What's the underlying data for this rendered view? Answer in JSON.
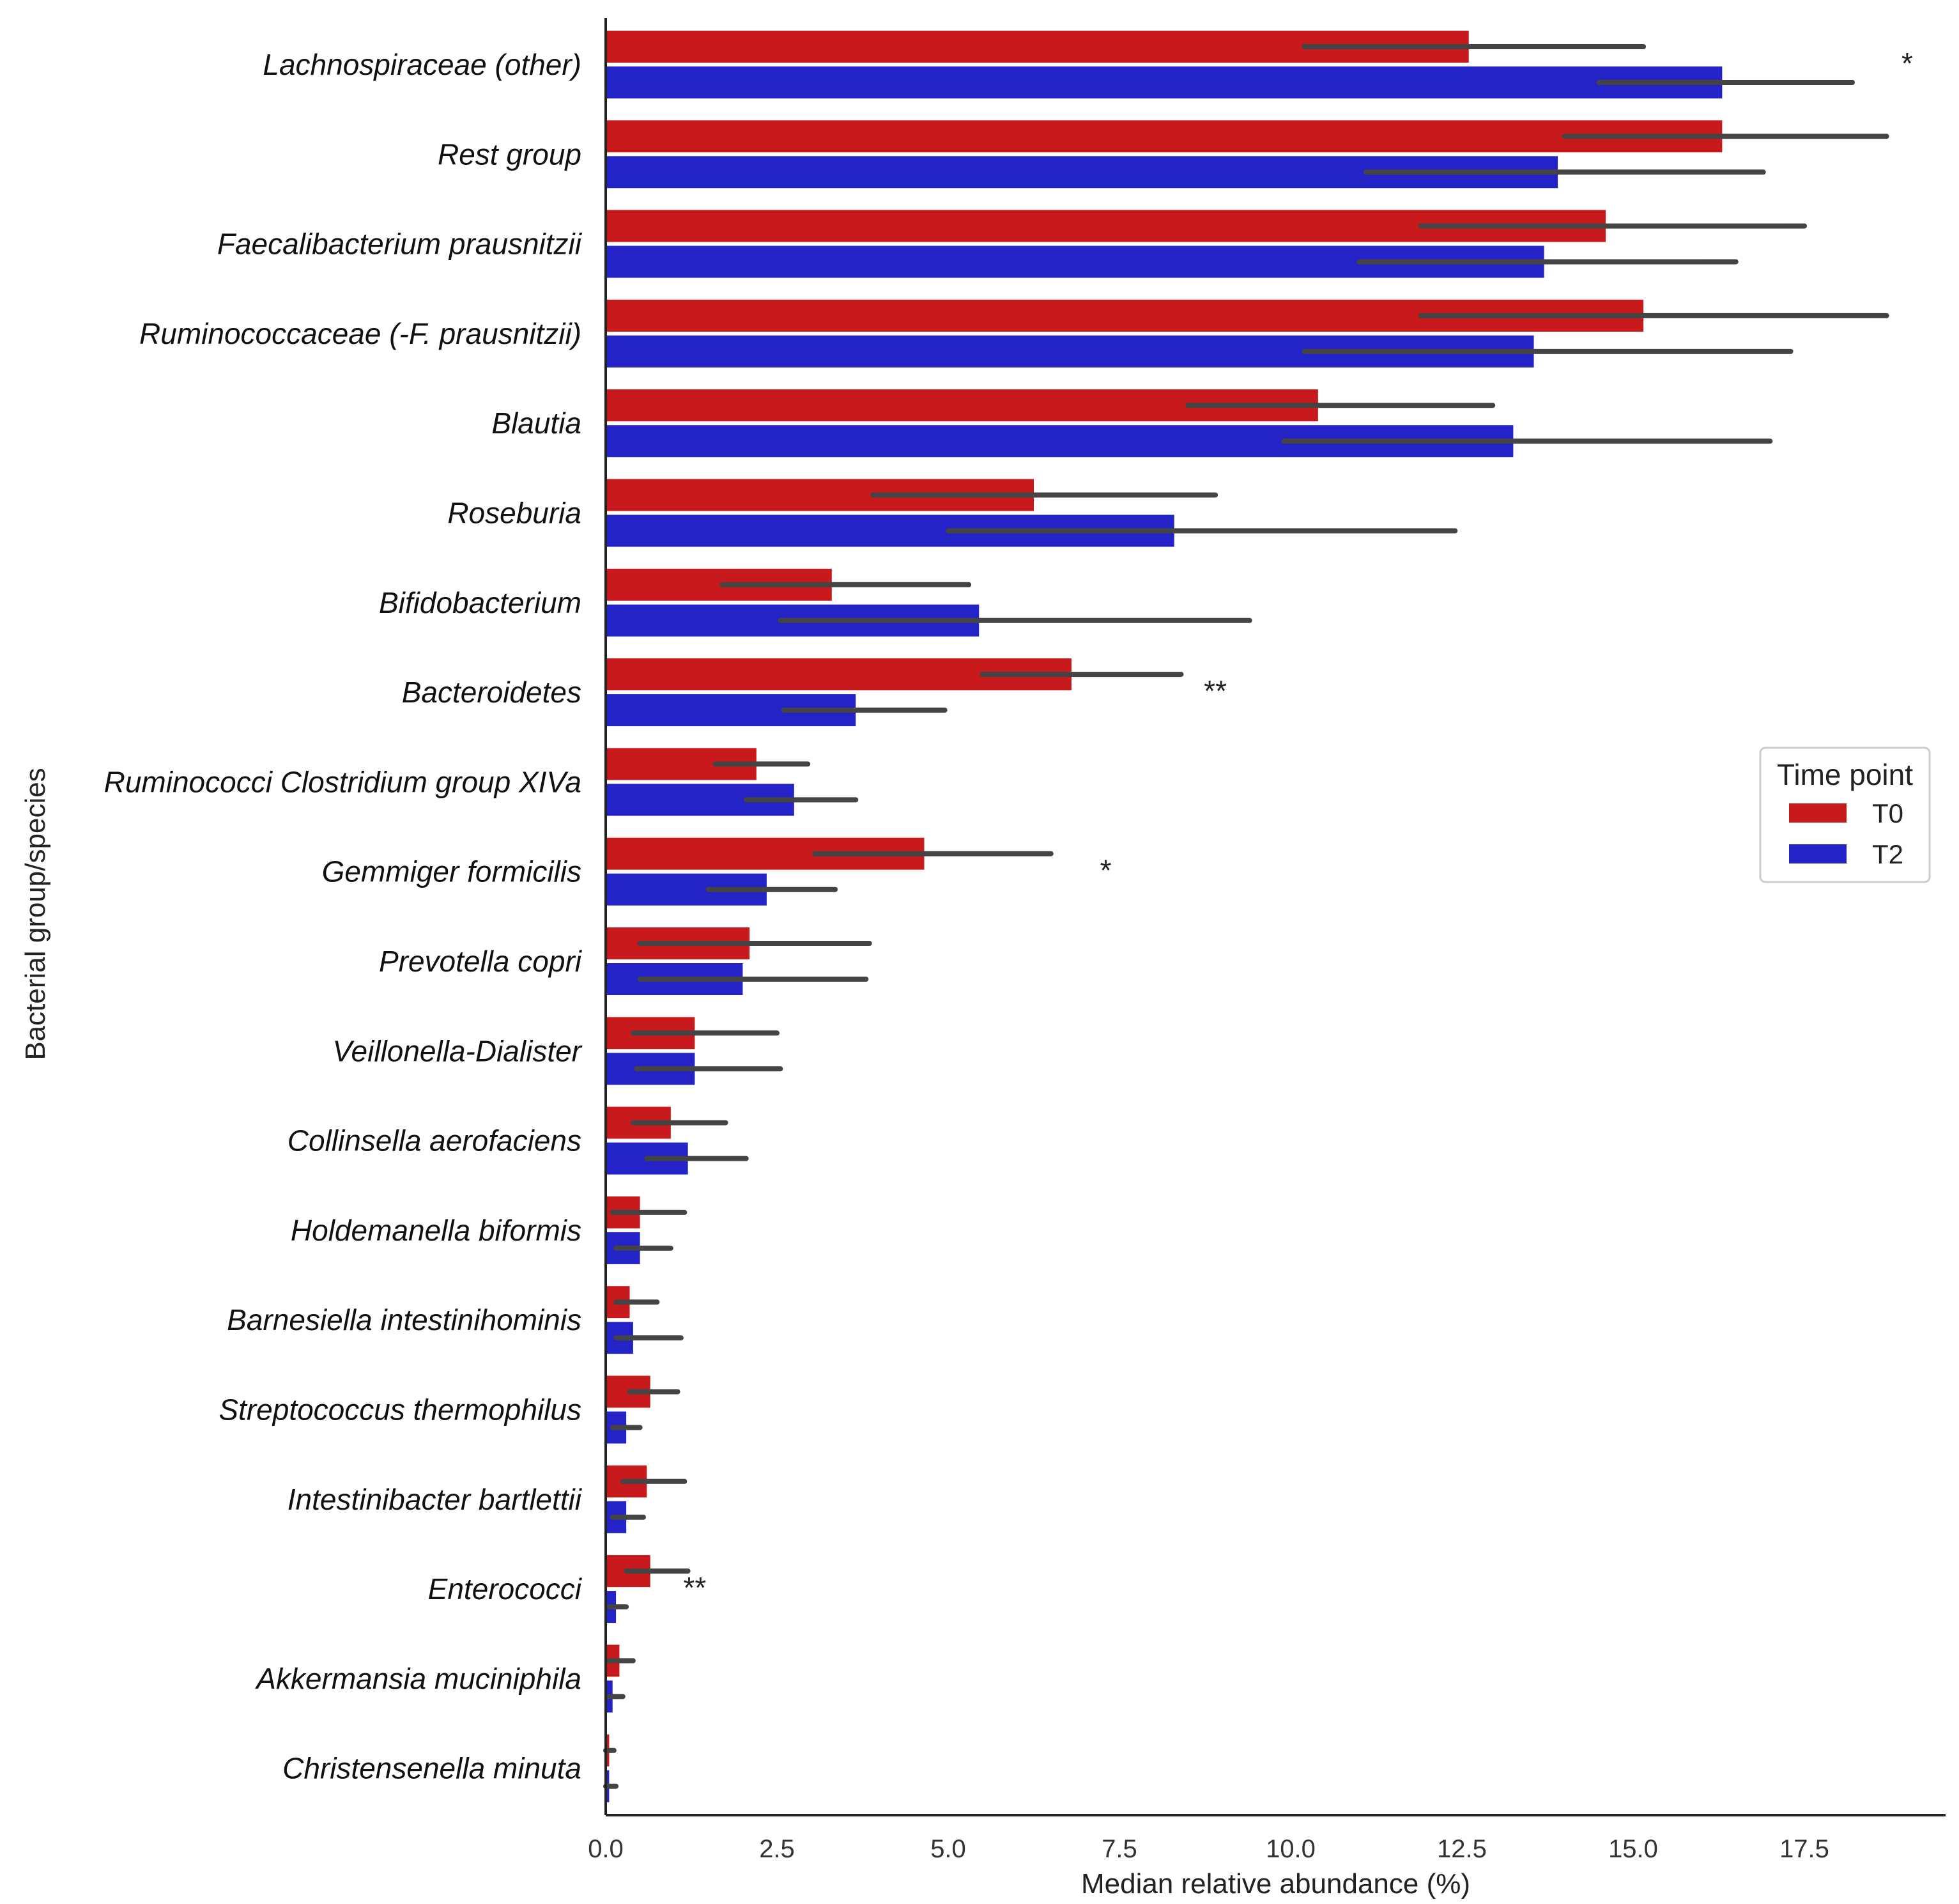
{
  "chart_data": {
    "type": "bar",
    "orientation": "horizontal",
    "xlabel": "Median relative abundance (%)",
    "ylabel": "Bacterial group/species",
    "xlim": [
      0,
      19.5
    ],
    "xticks": [
      "0.0",
      "2.5",
      "5.0",
      "7.5",
      "10.0",
      "12.5",
      "15.0",
      "17.5"
    ],
    "grid": false,
    "legend": {
      "title": "Time point",
      "position": "right"
    },
    "colors": {
      "T0": "#c8191d",
      "T2": "#2323c8",
      "errorbar": "#444444"
    },
    "categories": [
      "Lachnospiraceae (other)",
      "Rest group",
      "Faecalibacterium prausnitzii",
      "Ruminococcaceae (-F. prausnitzii)",
      "Blautia",
      "Roseburia",
      "Bifidobacterium",
      "Bacteroidetes",
      "Ruminococci Clostridium group XIVa",
      "Gemmiger formicilis",
      "Prevotella copri",
      "Veillonella-Dialister",
      "Collinsella aerofaciens",
      "Holdemanella biformis",
      "Barnesiella intestinihominis",
      "Streptococcus thermophilus",
      "Intestinibacter bartlettii",
      "Enterococci",
      "Akkermansia muciniphila",
      "Christensenella minuta"
    ],
    "series": [
      {
        "name": "T0",
        "values": [
          12.6,
          16.3,
          14.6,
          15.15,
          10.4,
          6.25,
          3.3,
          6.8,
          2.2,
          4.65,
          2.1,
          1.3,
          0.95,
          0.5,
          0.35,
          0.65,
          0.6,
          0.65,
          0.2,
          0.05
        ],
        "ci": [
          [
            10.2,
            15.15
          ],
          [
            14.0,
            18.7
          ],
          [
            11.9,
            17.5
          ],
          [
            11.9,
            18.7
          ],
          [
            8.5,
            12.95
          ],
          [
            3.9,
            8.9
          ],
          [
            1.7,
            5.3
          ],
          [
            5.5,
            8.4
          ],
          [
            1.6,
            2.95
          ],
          [
            3.05,
            6.5
          ],
          [
            0.5,
            3.85
          ],
          [
            0.4,
            2.5
          ],
          [
            0.4,
            1.75
          ],
          [
            0.1,
            1.15
          ],
          [
            0.15,
            0.75
          ],
          [
            0.35,
            1.05
          ],
          [
            0.25,
            1.15
          ],
          [
            0.3,
            1.2
          ],
          [
            0.05,
            0.4
          ],
          [
            0.0,
            0.12
          ]
        ]
      },
      {
        "name": "T2",
        "values": [
          16.3,
          13.9,
          13.7,
          13.55,
          13.25,
          8.3,
          5.45,
          3.65,
          2.75,
          2.35,
          2.0,
          1.3,
          1.2,
          0.5,
          0.4,
          0.3,
          0.3,
          0.15,
          0.1,
          0.05
        ],
        "ci": [
          [
            14.5,
            18.2
          ],
          [
            11.1,
            16.9
          ],
          [
            11.0,
            16.5
          ],
          [
            10.2,
            17.3
          ],
          [
            9.9,
            17.0
          ],
          [
            5.0,
            12.4
          ],
          [
            2.55,
            9.4
          ],
          [
            2.6,
            4.95
          ],
          [
            2.05,
            3.65
          ],
          [
            1.5,
            3.35
          ],
          [
            0.5,
            3.8
          ],
          [
            0.45,
            2.55
          ],
          [
            0.6,
            2.05
          ],
          [
            0.15,
            0.95
          ],
          [
            0.15,
            1.1
          ],
          [
            0.1,
            0.5
          ],
          [
            0.1,
            0.55
          ],
          [
            0.05,
            0.3
          ],
          [
            0.05,
            0.25
          ],
          [
            0.0,
            0.15
          ]
        ]
      }
    ],
    "significance": [
      {
        "category": "Lachnospiraceae (other)",
        "label": "*",
        "x": 19.0
      },
      {
        "category": "Bacteroidetes",
        "label": "**",
        "x": 8.9
      },
      {
        "category": "Gemmiger formicilis",
        "label": "*",
        "x": 7.3
      },
      {
        "category": "Enterococci",
        "label": "**",
        "x": 1.3
      }
    ]
  }
}
